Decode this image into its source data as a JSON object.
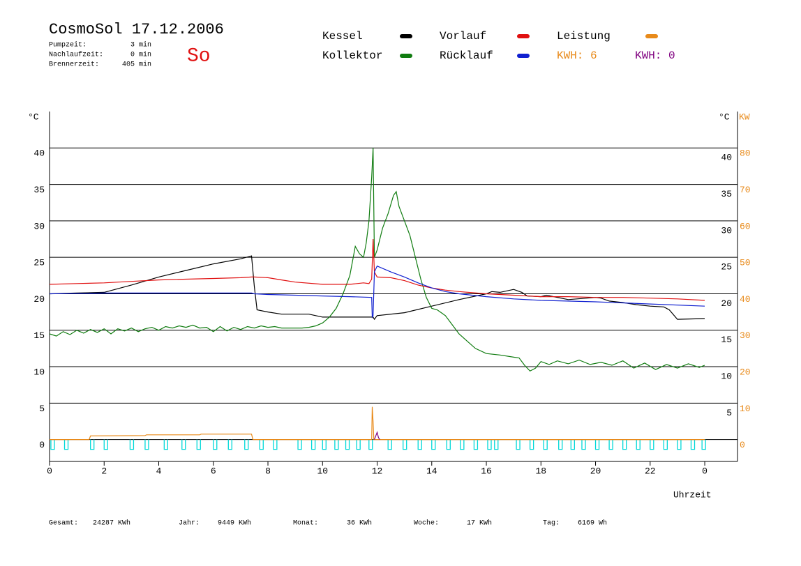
{
  "header": {
    "title": "CosmoSol 17.12.2006",
    "day": "So",
    "stats": [
      {
        "label": "Pumpzeit:",
        "value": "3 min"
      },
      {
        "label": "Nachlaufzeit:",
        "value": "0 min"
      },
      {
        "label": "Brennerzeit:",
        "value": "405 min"
      }
    ]
  },
  "footer": [
    {
      "label": "Gesamt:",
      "value": "24287 KWh"
    },
    {
      "label": "Jahr:",
      "value": "9449 KWh"
    },
    {
      "label": "Monat:",
      "value": "36 KWh"
    },
    {
      "label": "Woche:",
      "value": "17 KWh"
    },
    {
      "label": "Tag:",
      "value": "6169 Wh"
    }
  ],
  "chart_data": {
    "type": "line",
    "xlabel": "Uhrzeit",
    "ylabel": "°C",
    "yright_label": "°C",
    "y2label": "KW",
    "xlim": [
      0,
      25.2
    ],
    "xticks": [
      0,
      2,
      4,
      6,
      8,
      10,
      12,
      14,
      16,
      18,
      20,
      22,
      {
        "value": 24,
        "label": "0"
      }
    ],
    "ylim": [
      -3,
      45
    ],
    "yticks": [
      0,
      5,
      10,
      15,
      20,
      25,
      30,
      35,
      40
    ],
    "yright_ticks": [
      5,
      10,
      15,
      20,
      25,
      30,
      35,
      40
    ],
    "y2lim": [
      -6,
      90
    ],
    "y2ticks": [
      0,
      10,
      20,
      30,
      40,
      50,
      60,
      70,
      80
    ],
    "grid": true,
    "energy": [
      {
        "label": "KWH: 6",
        "color": "#e88a1a"
      },
      {
        "label": "KWH: 0",
        "color": "#800080"
      }
    ],
    "series": [
      {
        "name": "Kessel",
        "color": "#000000",
        "x": [
          0,
          1,
          2,
          3,
          4,
          5,
          6,
          7,
          7.4,
          7.5,
          7.6,
          8,
          8.5,
          9.5,
          10,
          11,
          11.85,
          11.9,
          12,
          13,
          14,
          15,
          16,
          16.2,
          16.5,
          17,
          17.3,
          17.5,
          18,
          18.2,
          19,
          20,
          20.2,
          20.5,
          21,
          21.5,
          22,
          22.5,
          22.7,
          23,
          24
        ],
        "values": [
          20,
          20.1,
          20.2,
          21.2,
          22.3,
          23.2,
          24.1,
          24.8,
          25.2,
          21,
          17.8,
          17.5,
          17.2,
          17.2,
          16.8,
          16.8,
          16.8,
          16.5,
          17,
          17.4,
          18.3,
          19.2,
          20,
          20.3,
          20.2,
          20.6,
          20.2,
          19.7,
          19.6,
          19.8,
          19.2,
          19.5,
          19.4,
          19,
          18.8,
          18.5,
          18.3,
          18.2,
          17.8,
          16.5,
          16.6
        ]
      },
      {
        "name": "Kollektor",
        "color": "#107c10",
        "x": [
          0,
          0.25,
          0.5,
          0.75,
          1,
          1.25,
          1.5,
          1.75,
          2,
          2.25,
          2.5,
          2.75,
          3,
          3.25,
          3.5,
          3.75,
          4,
          4.25,
          4.5,
          4.75,
          5,
          5.25,
          5.5,
          5.75,
          6,
          6.25,
          6.5,
          6.75,
          7,
          7.25,
          7.5,
          7.75,
          8,
          8.25,
          8.5,
          8.75,
          9,
          9.25,
          9.5,
          9.75,
          10,
          10.25,
          10.5,
          10.75,
          11,
          11.1,
          11.2,
          11.35,
          11.5,
          11.6,
          11.7,
          11.8,
          11.85,
          11.9,
          12,
          12.2,
          12.4,
          12.6,
          12.7,
          12.8,
          13,
          13.2,
          13.4,
          13.6,
          13.8,
          14,
          14.2,
          14.5,
          14.8,
          15,
          15.3,
          15.6,
          16,
          16.5,
          17,
          17.2,
          17.4,
          17.6,
          17.8,
          18,
          18.3,
          18.6,
          19,
          19.4,
          19.8,
          20.2,
          20.6,
          21,
          21.4,
          21.8,
          22.2,
          22.6,
          23,
          23.4,
          23.8,
          24
        ],
        "values": [
          14.5,
          14.2,
          14.8,
          14.4,
          15,
          14.6,
          15.1,
          14.7,
          15.2,
          14.5,
          15.2,
          14.9,
          15.3,
          14.8,
          15.2,
          15.4,
          15,
          15.5,
          15.3,
          15.6,
          15.4,
          15.7,
          15.3,
          15.4,
          14.8,
          15.5,
          14.9,
          15.4,
          15.1,
          15.5,
          15.3,
          15.6,
          15.4,
          15.5,
          15.3,
          15.3,
          15.3,
          15.3,
          15.4,
          15.6,
          16,
          16.8,
          18,
          20,
          22.5,
          24.5,
          26.5,
          25.5,
          25,
          27,
          30,
          36,
          40,
          25,
          26,
          29,
          31,
          33.5,
          34,
          32,
          30,
          28,
          25,
          22,
          19.5,
          18,
          17.8,
          17,
          15.5,
          14.5,
          13.5,
          12.5,
          11.8,
          11.6,
          11.3,
          11.2,
          10.2,
          9.4,
          9.8,
          10.7,
          10.3,
          10.8,
          10.4,
          10.9,
          10.3,
          10.6,
          10.2,
          10.8,
          9.8,
          10.5,
          9.6,
          10.3,
          9.8,
          10.4,
          9.9,
          10.2
        ]
      },
      {
        "name": "Vorlauf",
        "color": "#e01010",
        "x": [
          0,
          1,
          2,
          3,
          4,
          5,
          6,
          7,
          7.4,
          7.5,
          8,
          8.5,
          9,
          10,
          11,
          11.5,
          11.7,
          11.8,
          11.85,
          11.9,
          12,
          12.5,
          13,
          13.5,
          14,
          14.5,
          15,
          16,
          17,
          18,
          19,
          20,
          21,
          22,
          23,
          24
        ],
        "values": [
          21.3,
          21.4,
          21.5,
          21.7,
          21.9,
          22,
          22.1,
          22.2,
          22.3,
          22.3,
          22.2,
          21.9,
          21.6,
          21.3,
          21.3,
          21.5,
          21.4,
          22,
          27.5,
          23,
          22.3,
          22.2,
          21.8,
          21.2,
          20.8,
          20.5,
          20.3,
          20,
          19.8,
          19.6,
          19.6,
          19.5,
          19.5,
          19.4,
          19.3,
          19.1
        ]
      },
      {
        "name": "Rücklauf",
        "color": "#1020d0",
        "x": [
          0,
          2,
          4,
          6,
          7.4,
          7.5,
          8,
          9,
          10,
          11,
          11.8,
          11.82,
          11.85,
          11.9,
          12,
          12.5,
          13,
          13.5,
          14,
          14.5,
          15,
          16,
          17,
          18,
          20,
          22,
          24
        ],
        "values": [
          20,
          20.1,
          20.1,
          20.1,
          20.1,
          20,
          19.9,
          19.8,
          19.7,
          19.6,
          19.5,
          16.8,
          17,
          23,
          23.8,
          23,
          22.3,
          21.5,
          20.8,
          20.3,
          20,
          19.6,
          19.3,
          19.1,
          18.9,
          18.6,
          18.3
        ]
      },
      {
        "name": "Leistung",
        "color": "#e88a1a",
        "axis": "y2",
        "x": [
          0,
          1.45,
          1.5,
          3.5,
          3.55,
          5.5,
          5.55,
          7.4,
          7.45,
          11.8,
          11.82,
          11.85,
          11.88,
          12,
          24
        ],
        "values": [
          0,
          0,
          1,
          1.1,
          1.3,
          1.3,
          1.5,
          1.5,
          0,
          0,
          9,
          5,
          0,
          0,
          0
        ]
      },
      {
        "color": "#800080",
        "axis": "y2",
        "x": [
          11.9,
          12,
          12.05,
          12.1
        ],
        "values": [
          0,
          2,
          0.5,
          0
        ]
      }
    ],
    "pump": {
      "color": "#00d8d8",
      "starts": [
        0.05,
        0.55,
        1.5,
        2.0,
        2.95,
        3.5,
        4.2,
        4.85,
        5.4,
        6.0,
        6.55,
        7.15,
        7.7,
        8.2,
        9.1,
        9.6,
        10.0,
        10.45,
        10.85,
        11.25,
        11.7,
        12.4,
        12.95,
        13.5,
        14.0,
        14.55,
        15.05,
        15.55,
        16.05,
        16.3,
        17.1,
        17.6,
        18.1,
        18.65,
        19.1,
        19.5,
        20.0,
        20.5,
        21.0,
        21.5,
        22.0,
        22.5,
        23.0,
        23.5,
        23.9
      ]
    }
  }
}
